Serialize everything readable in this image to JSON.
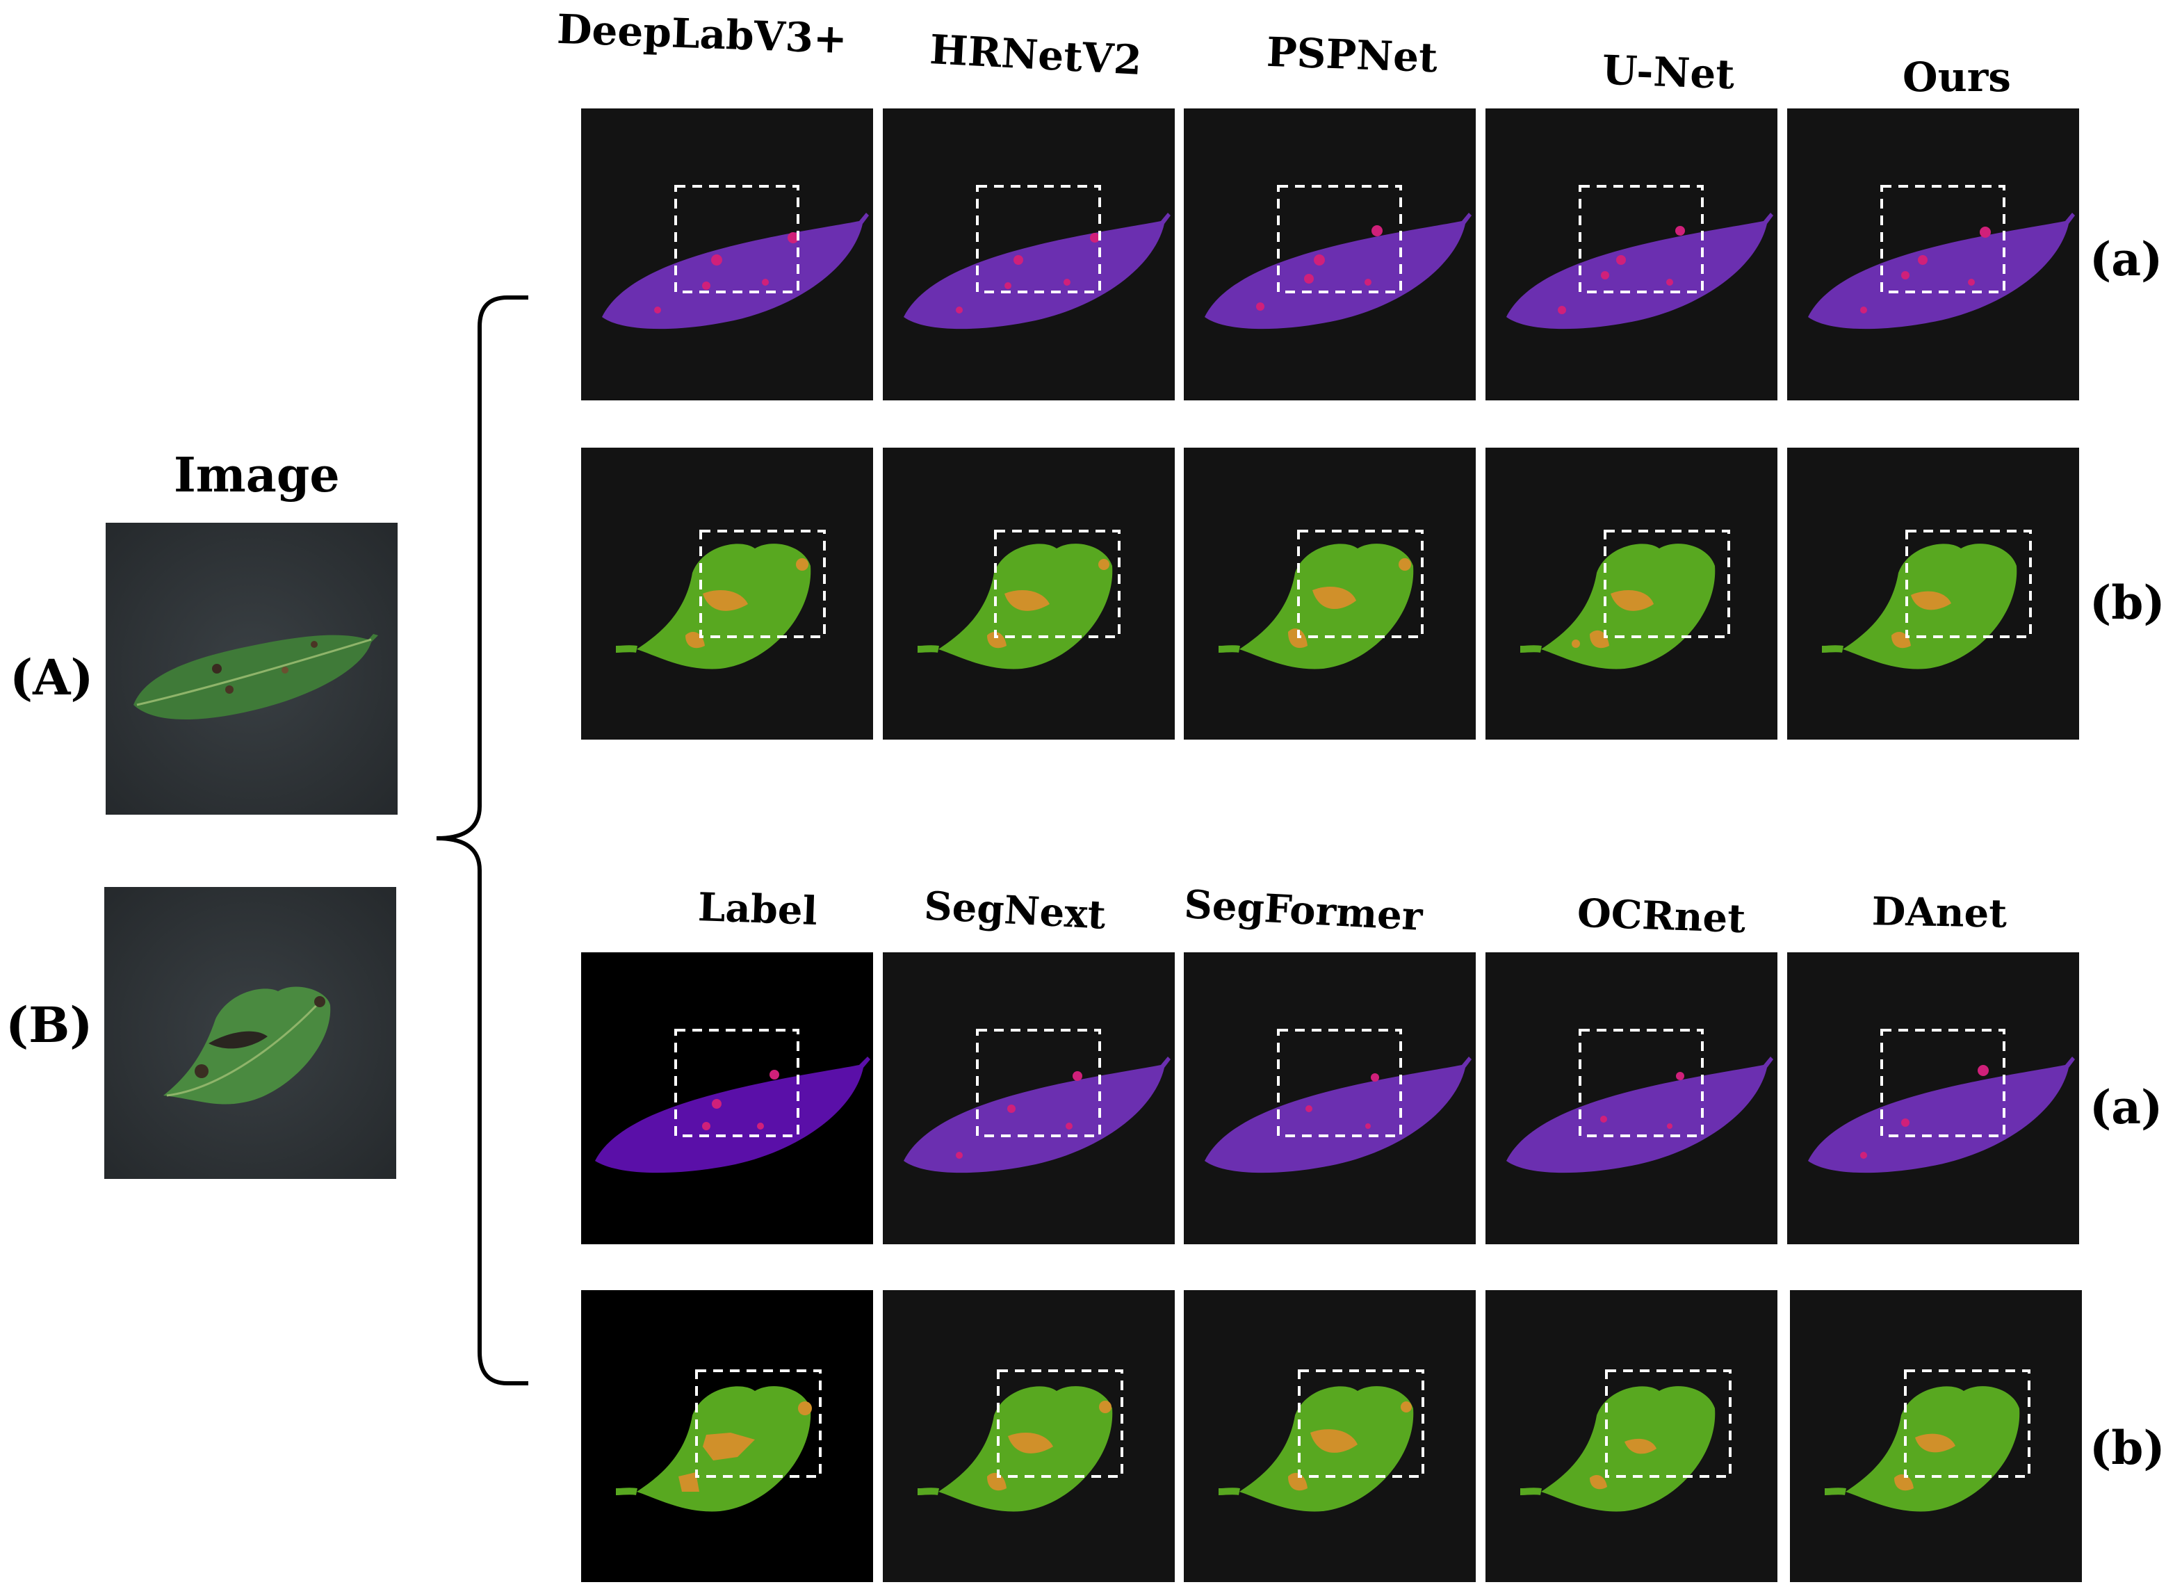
{
  "image_column": {
    "title": "Image",
    "samples": [
      {
        "tag": "(A)"
      },
      {
        "tag": "(B)"
      }
    ]
  },
  "top_block": {
    "headers": [
      "DeepLabV3+",
      "HRNetV2",
      "PSPNet",
      "U-Net",
      "Ours"
    ],
    "row_tags": [
      "(a)",
      "(b)"
    ]
  },
  "bottom_block": {
    "headers": [
      "Label",
      "SegNext",
      "SegFormer",
      "OCRnet",
      "DAnet"
    ],
    "row_tags": [
      "(a)",
      "(b)"
    ]
  },
  "colors": {
    "panel_background": "#131313",
    "label_background": "#000000",
    "leaf_purple": "#6b2fb0",
    "label_purple": "#5a0fa8",
    "lesion_magenta": "#d0207a",
    "leaf_green": "#58a820",
    "lesion_orange": "#d0902a",
    "roi_box": "#ffffff",
    "photo_background": "#2e3336",
    "photo_leaf": "#3f7a38"
  }
}
